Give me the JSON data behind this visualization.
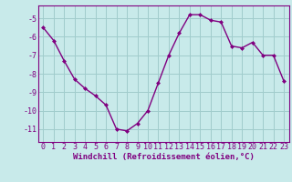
{
  "x": [
    0,
    1,
    2,
    3,
    4,
    5,
    6,
    7,
    8,
    9,
    10,
    11,
    12,
    13,
    14,
    15,
    16,
    17,
    18,
    19,
    20,
    21,
    22,
    23
  ],
  "y": [
    -5.5,
    -6.2,
    -7.3,
    -8.3,
    -8.8,
    -9.2,
    -9.7,
    -11.0,
    -11.1,
    -10.7,
    -10.0,
    -8.5,
    -7.0,
    -5.8,
    -4.8,
    -4.8,
    -5.1,
    -5.2,
    -6.5,
    -6.6,
    -6.3,
    -7.0,
    -7.0,
    -8.4
  ],
  "line_color": "#800080",
  "marker": "D",
  "markersize": 2,
  "linewidth": 1.0,
  "bg_color": "#c8eaea",
  "grid_color": "#a0cccc",
  "xlabel": "Windchill (Refroidissement éolien,°C)",
  "xlabel_fontsize": 6.5,
  "tick_fontsize": 6,
  "ylim": [
    -11.7,
    -4.3
  ],
  "xlim": [
    -0.5,
    23.5
  ],
  "yticks": [
    -11,
    -10,
    -9,
    -8,
    -7,
    -6,
    -5
  ],
  "xticks": [
    0,
    1,
    2,
    3,
    4,
    5,
    6,
    7,
    8,
    9,
    10,
    11,
    12,
    13,
    14,
    15,
    16,
    17,
    18,
    19,
    20,
    21,
    22,
    23
  ]
}
